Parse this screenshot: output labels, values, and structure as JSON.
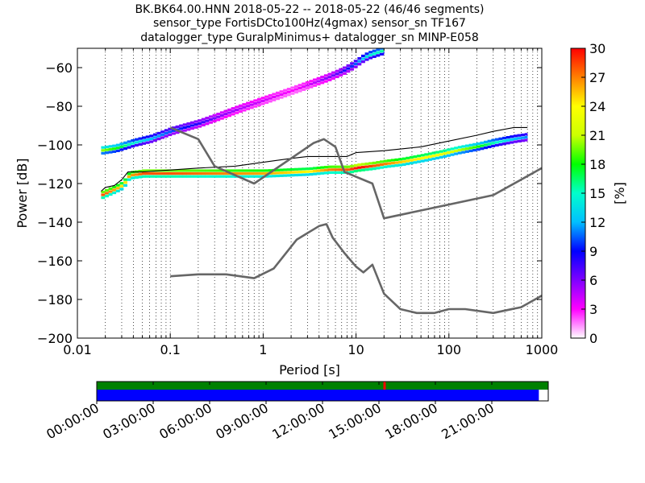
{
  "title_lines": [
    "BK.BK64.00.HNN   2018-05-22 -- 2018-05-22  (46/46 segments)",
    "sensor_type FortisDCto100Hz(4gmax) sensor_sn TF167",
    "datalogger_type GuralpMinimus+ datalogger_sn MINP-E058"
  ],
  "chart_data": [
    {
      "type": "heatmap",
      "xlabel": "Period [s]",
      "ylabel": "Power [dB]",
      "xscale": "log",
      "xlim": [
        0.01,
        1000
      ],
      "ylim": [
        -200,
        -50
      ],
      "x_ticks": [
        0.01,
        0.1,
        1,
        10,
        100,
        1000
      ],
      "x_tick_labels": [
        "0.01",
        "0.1",
        "1",
        "10",
        "100",
        "1000"
      ],
      "y_ticks": [
        -200,
        -180,
        -160,
        -140,
        -120,
        -100,
        -80,
        -60
      ],
      "y_tick_labels": [
        "−200",
        "−180",
        "−160",
        "−140",
        "−120",
        "−100",
        "−80",
        "−60"
      ],
      "grid": "vertical-dotted",
      "colorbar": {
        "label": "[%]",
        "range": [
          0,
          30
        ],
        "ticks": [
          0,
          3,
          6,
          9,
          12,
          15,
          18,
          21,
          24,
          27,
          30
        ],
        "tick_labels": [
          "0",
          "3",
          "6",
          "9",
          "12",
          "15",
          "18",
          "21",
          "24",
          "27",
          "30"
        ],
        "colors": [
          "#ffffff",
          "#ff00ff",
          "#7f00ff",
          "#0000ff",
          "#00bfff",
          "#00ffcc",
          "#00ff00",
          "#ccff00",
          "#ffff00",
          "#ff8000",
          "#ff0000"
        ]
      },
      "density_bands": [
        {
          "period": [
            0.018,
            0.025,
            0.04,
            0.06,
            0.1,
            0.2,
            0.3,
            0.5,
            1,
            2,
            3,
            5,
            7,
            9,
            11,
            13,
            20
          ],
          "power": [
            -103,
            -102,
            -99,
            -97,
            -93,
            -89,
            -86,
            -82,
            -77,
            -72,
            -69,
            -65,
            -62,
            -59,
            -56,
            -54,
            -51
          ],
          "percent": [
            20,
            18,
            14,
            12,
            10,
            8,
            6,
            5,
            4,
            3,
            4,
            6,
            8,
            10,
            12,
            14,
            16
          ]
        },
        {
          "period": [
            0.018,
            0.025,
            0.03,
            0.035,
            0.05,
            0.1,
            0.3,
            1,
            3,
            5,
            8,
            10,
            15,
            20,
            30,
            50,
            80,
            120,
            200,
            300,
            500,
            700
          ],
          "power": [
            -126,
            -123,
            -121,
            -116,
            -115,
            -115,
            -115,
            -115,
            -114,
            -113,
            -113,
            -112,
            -111,
            -110,
            -109,
            -107,
            -105,
            -103,
            -101,
            -99,
            -97,
            -96
          ],
          "percent": [
            28,
            26,
            24,
            26,
            28,
            28,
            27,
            26,
            24,
            27,
            28,
            30,
            28,
            27,
            25,
            24,
            23,
            21,
            18,
            15,
            12,
            11
          ]
        }
      ],
      "lines": [
        {
          "period": [
            0.018,
            0.02,
            0.025,
            0.03,
            0.035,
            0.05,
            0.1,
            0.2,
            0.5,
            1,
            2,
            3,
            5,
            8,
            10,
            20,
            50,
            100,
            200,
            300,
            500,
            700
          ],
          "power": [
            -124,
            -122,
            -121,
            -118,
            -114,
            -114,
            -113,
            -112,
            -111,
            -109,
            -107,
            -106,
            -106,
            -106,
            -104,
            -103,
            -101,
            -98,
            -95,
            -93,
            -91,
            -91
          ]
        },
        {
          "period": [
            0.1,
            0.2,
            0.3,
            0.8,
            3.5,
            4.5,
            6,
            7.5,
            15,
            20,
            300,
            1000
          ],
          "power": [
            -91,
            -97,
            -111,
            -120,
            -99,
            -97,
            -101,
            -114,
            -120,
            -138,
            -126,
            -112
          ]
        },
        {
          "period": [
            0.1,
            0.2,
            0.4,
            0.8,
            1.3,
            2.3,
            4,
            4.8,
            5.6,
            7.5,
            10,
            12,
            15,
            20,
            30,
            45,
            70,
            100,
            150,
            300,
            600,
            1000
          ],
          "power": [
            -168,
            -167,
            -167,
            -169,
            -164,
            -149,
            -142,
            -141,
            -148,
            -156,
            -163,
            -166,
            -162,
            -177,
            -185,
            -187,
            -187,
            -185,
            -185,
            -187,
            -184,
            -178
          ]
        }
      ]
    },
    {
      "type": "timeline",
      "x_tick_labels": [
        "00:00:00",
        "03:00:00",
        "06:00:00",
        "09:00:00",
        "12:00:00",
        "15:00:00",
        "18:00:00",
        "21:00:00"
      ],
      "x_ticks_hours": [
        0,
        3,
        6,
        9,
        12,
        15,
        18,
        21
      ],
      "range_hours": [
        0,
        24
      ],
      "data_coverage_hours": [
        0,
        23.5
      ],
      "colors": {
        "top": "#008000",
        "bottom": "#0000ff",
        "marker": "#ff0000"
      },
      "marker_hours": 15.3
    }
  ]
}
